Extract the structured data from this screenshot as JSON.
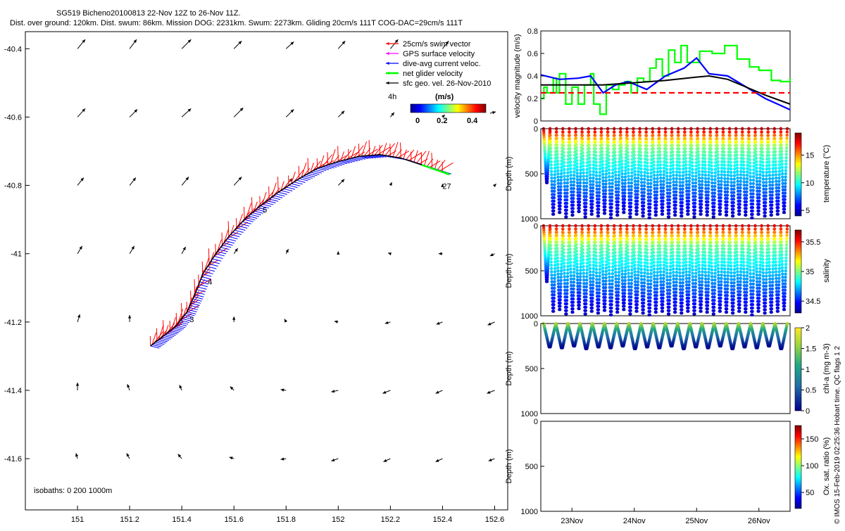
{
  "header": {
    "line1": "SG519 Bicheno20100813 22-Nov 12Z to 26-Nov 11Z.",
    "line2": "Dist. over ground: 120km. Dist. swum: 86km. Mission DOG: 2231km. Swum: 2273km. Gliding 20cm/s 111T COG-DAC=29cm/s 111T"
  },
  "side_note": "© IMOS 15-Feb-2019 02:25:36 Hobart time. QC flags 1  2",
  "colors": {
    "swim": "#ff0000",
    "gps": "#ff00ff",
    "dac": "#0000ff",
    "net": "#00ff00",
    "geo": "#000000",
    "limit": "#ff0000"
  },
  "chart_data": [
    {
      "type": "scatter",
      "id": "track_map",
      "xlim": [
        150.8,
        152.65
      ],
      "ylim": [
        -41.75,
        -40.35
      ],
      "xticks": [
        "151",
        "151.2",
        "151.4",
        "151.6",
        "151.8",
        "152",
        "152.2",
        "152.4",
        "152.6"
      ],
      "xtick_values": [
        151,
        151.2,
        151.4,
        151.6,
        151.8,
        152,
        152.2,
        152.4,
        152.6
      ],
      "yticks": [
        "-40.4",
        "-40.6",
        "-40.8",
        "-41",
        "-41.2",
        "-41.4",
        "-41.6"
      ],
      "ytick_values": [
        -40.4,
        -40.6,
        -40.8,
        -41,
        -41.2,
        -41.4,
        -41.6
      ],
      "legend": {
        "position": "top-right",
        "entries": [
          {
            "label": "25cm/s swim vector",
            "color": "#ff0000"
          },
          {
            "label": "GPS surface velocity",
            "color": "#ff00ff"
          },
          {
            "label": "dive-avg current veloc.",
            "color": "#0000ff"
          },
          {
            "label": "net glider velocity",
            "color": "#00ff00"
          },
          {
            "label": "sfc geo. vel. 26-Nov-2010",
            "color": "#000000"
          }
        ],
        "interval_label": "4h",
        "colorbar_units": "(m/s)",
        "colorbar_ticks": [
          "0",
          "0.2",
          "0.4"
        ],
        "colorbar_range": [
          0,
          0.5
        ]
      },
      "isobath_note": "isobaths: 0   200   1000m",
      "day_labels": [
        {
          "text": "3",
          "lon": 151.43,
          "lat": -41.2
        },
        {
          "text": "4",
          "lon": 151.5,
          "lat": -41.09
        },
        {
          "text": "5",
          "lon": 151.71,
          "lat": -40.88
        },
        {
          "text": "27",
          "lon": 152.4,
          "lat": -40.81
        }
      ],
      "track": [
        [
          151.28,
          -41.27
        ],
        [
          151.33,
          -41.24
        ],
        [
          151.38,
          -41.21
        ],
        [
          151.42,
          -41.17
        ],
        [
          151.45,
          -41.12
        ],
        [
          151.48,
          -41.06
        ],
        [
          151.53,
          -41.0
        ],
        [
          151.58,
          -40.95
        ],
        [
          151.64,
          -40.9
        ],
        [
          151.7,
          -40.86
        ],
        [
          151.77,
          -40.82
        ],
        [
          151.85,
          -40.78
        ],
        [
          151.92,
          -40.75
        ],
        [
          152.0,
          -40.73
        ],
        [
          152.08,
          -40.715
        ],
        [
          152.16,
          -40.71
        ],
        [
          152.24,
          -40.72
        ],
        [
          152.32,
          -40.74
        ],
        [
          152.4,
          -40.76
        ]
      ],
      "geo_vectors": [
        [
          151.0,
          -40.4,
          0.1,
          0.12
        ],
        [
          151.2,
          -40.4,
          0.09,
          0.12
        ],
        [
          151.4,
          -40.4,
          0.12,
          0.12
        ],
        [
          151.6,
          -40.4,
          0.1,
          0.1
        ],
        [
          151.8,
          -40.4,
          0.1,
          0.09
        ],
        [
          152.0,
          -40.4,
          0.09,
          0.1
        ],
        [
          152.2,
          -40.4,
          0.1,
          0.12
        ],
        [
          152.4,
          -40.4,
          0.08,
          0.1
        ],
        [
          151.0,
          -40.6,
          0.1,
          0.11
        ],
        [
          151.2,
          -40.6,
          0.1,
          0.1
        ],
        [
          151.4,
          -40.6,
          0.12,
          0.11
        ],
        [
          151.6,
          -40.6,
          0.12,
          0.12
        ],
        [
          151.8,
          -40.6,
          0.1,
          0.1
        ],
        [
          152.0,
          -40.6,
          0.08,
          0.08
        ],
        [
          152.2,
          -40.6,
          0.05,
          0.06
        ],
        [
          152.4,
          -40.6,
          0.03,
          0.03
        ],
        [
          151.0,
          -40.8,
          0.08,
          0.1
        ],
        [
          151.2,
          -40.8,
          0.08,
          0.1
        ],
        [
          151.4,
          -40.8,
          0.09,
          0.11
        ],
        [
          151.6,
          -40.8,
          0.1,
          0.11
        ],
        [
          151.8,
          -40.8,
          0.08,
          0.09
        ],
        [
          152.0,
          -40.8,
          0.08,
          0.08
        ],
        [
          152.2,
          -40.8,
          0.02,
          0.04
        ],
        [
          152.4,
          -40.8,
          0.0,
          0.02
        ],
        [
          152.6,
          -40.8,
          0.02,
          0.02
        ],
        [
          151.0,
          -41.0,
          0.06,
          0.1
        ],
        [
          151.2,
          -41.0,
          0.06,
          0.1
        ],
        [
          151.4,
          -41.0,
          0.05,
          0.09
        ],
        [
          151.6,
          -41.0,
          0.05,
          0.07
        ],
        [
          151.8,
          -41.0,
          0.03,
          0.06
        ],
        [
          152.0,
          -41.0,
          0.0,
          0.03
        ],
        [
          152.2,
          -41.0,
          -0.03,
          0.01
        ],
        [
          152.4,
          -41.0,
          -0.05,
          0.0
        ],
        [
          152.6,
          -41.0,
          -0.06,
          -0.03
        ],
        [
          151.0,
          -41.2,
          0.03,
          0.1
        ],
        [
          151.2,
          -41.2,
          0.0,
          0.09
        ],
        [
          151.4,
          -41.2,
          0.0,
          0.08
        ],
        [
          151.6,
          -41.2,
          0.0,
          0.07
        ],
        [
          151.8,
          -41.2,
          -0.02,
          0.04
        ],
        [
          152.0,
          -41.2,
          -0.05,
          0.01
        ],
        [
          152.2,
          -41.2,
          -0.07,
          -0.02
        ],
        [
          152.4,
          -41.2,
          -0.08,
          -0.03
        ],
        [
          152.6,
          -41.2,
          -0.09,
          -0.04
        ],
        [
          151.0,
          -41.4,
          0.0,
          0.1
        ],
        [
          151.2,
          -41.4,
          -0.03,
          0.08
        ],
        [
          151.4,
          -41.4,
          -0.03,
          0.07
        ],
        [
          151.6,
          -41.4,
          -0.05,
          0.05
        ],
        [
          151.8,
          -41.4,
          -0.07,
          0.01
        ],
        [
          152.0,
          -41.4,
          -0.09,
          -0.02
        ],
        [
          152.2,
          -41.4,
          -0.1,
          -0.04
        ],
        [
          152.4,
          -41.4,
          -0.09,
          -0.04
        ],
        [
          152.6,
          -41.4,
          -0.1,
          -0.04
        ],
        [
          151.0,
          -41.6,
          -0.02,
          0.07
        ],
        [
          151.2,
          -41.6,
          -0.04,
          0.07
        ],
        [
          151.4,
          -41.6,
          -0.05,
          0.06
        ],
        [
          151.6,
          -41.6,
          -0.06,
          0.02
        ],
        [
          151.8,
          -41.6,
          -0.07,
          -0.01
        ],
        [
          152.0,
          -41.6,
          -0.09,
          -0.03
        ],
        [
          152.2,
          -41.6,
          -0.09,
          -0.04
        ],
        [
          152.4,
          -41.6,
          -0.09,
          -0.04
        ],
        [
          152.6,
          -41.6,
          -0.08,
          -0.03
        ]
      ]
    },
    {
      "type": "line",
      "id": "velocity_timeseries",
      "ylabel": "velocity magnitude (m/s)",
      "xlim": [
        22.5,
        26.5
      ],
      "ylim": [
        0,
        0.8
      ],
      "yticks": [
        "0",
        "0.2",
        "0.4",
        "0.6",
        "0.8"
      ],
      "ytick_values": [
        0,
        0.2,
        0.4,
        0.6,
        0.8
      ],
      "series": [
        {
          "color": "#00ff00",
          "step": true,
          "x": [
            22.5,
            22.55,
            22.6,
            22.7,
            22.75,
            22.8,
            22.9,
            23.0,
            23.1,
            23.2,
            23.3,
            23.35,
            23.45,
            23.55,
            23.65,
            23.75,
            23.85,
            23.95,
            24.05,
            24.15,
            24.25,
            24.35,
            24.45,
            24.55,
            24.65,
            24.75,
            24.85,
            24.95,
            25.05,
            25.25,
            25.45,
            25.65,
            25.85,
            26.0,
            26.2,
            26.35,
            26.5
          ],
          "y": [
            0.2,
            0.3,
            0.25,
            0.38,
            0.25,
            0.42,
            0.15,
            0.3,
            0.15,
            0.32,
            0.42,
            0.15,
            0.06,
            0.32,
            0.28,
            0.32,
            0.35,
            0.25,
            0.38,
            0.35,
            0.47,
            0.55,
            0.4,
            0.63,
            0.52,
            0.67,
            0.52,
            0.52,
            0.62,
            0.6,
            0.67,
            0.55,
            0.48,
            0.45,
            0.36,
            0.35,
            0.38
          ]
        },
        {
          "color": "#0000ff",
          "step": false,
          "x": [
            22.5,
            22.8,
            23.1,
            23.3,
            23.5,
            23.7,
            23.9,
            24.2,
            24.5,
            24.8,
            25.0,
            25.2,
            25.5,
            25.8,
            26.1,
            26.5
          ],
          "y": [
            0.41,
            0.37,
            0.38,
            0.4,
            0.25,
            0.32,
            0.35,
            0.28,
            0.4,
            0.47,
            0.56,
            0.42,
            0.4,
            0.3,
            0.2,
            0.1
          ]
        },
        {
          "color": "#000000",
          "step": false,
          "x": [
            22.5,
            23.0,
            23.5,
            24.0,
            24.5,
            25.0,
            25.2,
            25.5,
            25.8,
            26.1,
            26.5
          ],
          "y": [
            0.32,
            0.32,
            0.32,
            0.34,
            0.36,
            0.39,
            0.4,
            0.37,
            0.3,
            0.23,
            0.15
          ]
        },
        {
          "color": "#ff0000",
          "dashed": true,
          "x": [
            22.5,
            26.5
          ],
          "y": [
            0.25,
            0.25
          ]
        }
      ]
    },
    {
      "type": "scatter",
      "id": "temperature_section",
      "ylabel": "Depth (m)",
      "colorbar_label": "temperature (°C)",
      "colorbar_ticks": [
        "5",
        "10",
        "15"
      ],
      "colorbar_tick_values": [
        5,
        10,
        15
      ],
      "colorbar_range": [
        4,
        19
      ],
      "ylim": [
        0,
        1000
      ],
      "yticks": [
        "0",
        "500",
        "1000"
      ],
      "ytick_values": [
        0,
        500,
        1000
      ],
      "profile_max_depths": [
        600,
        950,
        930,
        980,
        960,
        920,
        980,
        950,
        970,
        940,
        990,
        960,
        930,
        980,
        950,
        970,
        990,
        960,
        950,
        980,
        960,
        970,
        950,
        980,
        950,
        960,
        980,
        950,
        960,
        970,
        950,
        960,
        990,
        950,
        970,
        960,
        950,
        930
      ],
      "surface_value": 18,
      "deep_value": 5,
      "thermocline_depth": 200
    },
    {
      "type": "scatter",
      "id": "salinity_section",
      "ylabel": "Depth (m)",
      "colorbar_label": "salinity",
      "colorbar_ticks": [
        "34.5",
        "35",
        "35.5"
      ],
      "colorbar_tick_values": [
        34.5,
        35,
        35.5
      ],
      "colorbar_range": [
        34.3,
        35.7
      ],
      "ylim": [
        0,
        1000
      ],
      "yticks": [
        "0",
        "500",
        "1000"
      ],
      "ytick_values": [
        0,
        500,
        1000
      ],
      "profile_max_depths": [
        620,
        950,
        930,
        980,
        960,
        920,
        980,
        950,
        970,
        940,
        990,
        960,
        930,
        980,
        950,
        970,
        990,
        960,
        950,
        980,
        960,
        970,
        950,
        980,
        950,
        960,
        980,
        950,
        960,
        970,
        950,
        960,
        990,
        950,
        970,
        960,
        950,
        930
      ],
      "surface_value": 35.55,
      "deep_value": 34.4,
      "thermocline_depth": 220
    },
    {
      "type": "scatter",
      "id": "chla_section",
      "ylabel": "Depth (m)",
      "colorbar_label": "chl-a (mg m-3)",
      "colorbar_ticks": [
        "0",
        "0.5",
        "1",
        "1.5",
        "2"
      ],
      "colorbar_tick_values": [
        0,
        0.5,
        1,
        1.5,
        2
      ],
      "colorbar_range": [
        0,
        2
      ],
      "ylim": [
        0,
        1000
      ],
      "yticks": [
        "0",
        "500",
        "1000"
      ],
      "ytick_values": [
        0,
        500,
        1000
      ],
      "profile_max_depths": [
        260,
        270,
        250,
        280,
        260,
        270,
        250,
        280,
        260,
        270,
        250,
        280,
        260,
        270,
        250,
        280,
        260,
        270,
        250,
        280
      ],
      "surface_value": 1.7,
      "deep_value": 0.05,
      "thermocline_depth": 100
    },
    {
      "type": "scatter",
      "id": "oxygen_section",
      "ylabel": "Depth (m)",
      "colorbar_label": "Ox. sat. ratio (%)",
      "colorbar_ticks": [
        "50",
        "100",
        "150"
      ],
      "colorbar_tick_values": [
        50,
        100,
        150
      ],
      "colorbar_range": [
        20,
        175
      ],
      "ylim": [
        0,
        1000
      ],
      "yticks": [
        "0",
        "500",
        "1000"
      ],
      "ytick_values": [
        0,
        500,
        1000
      ],
      "xticks": [
        "23Nov",
        "24Nov",
        "25Nov",
        "26Nov"
      ],
      "xtick_values": [
        23,
        24,
        25,
        26
      ],
      "xlim": [
        22.5,
        26.5
      ]
    }
  ]
}
